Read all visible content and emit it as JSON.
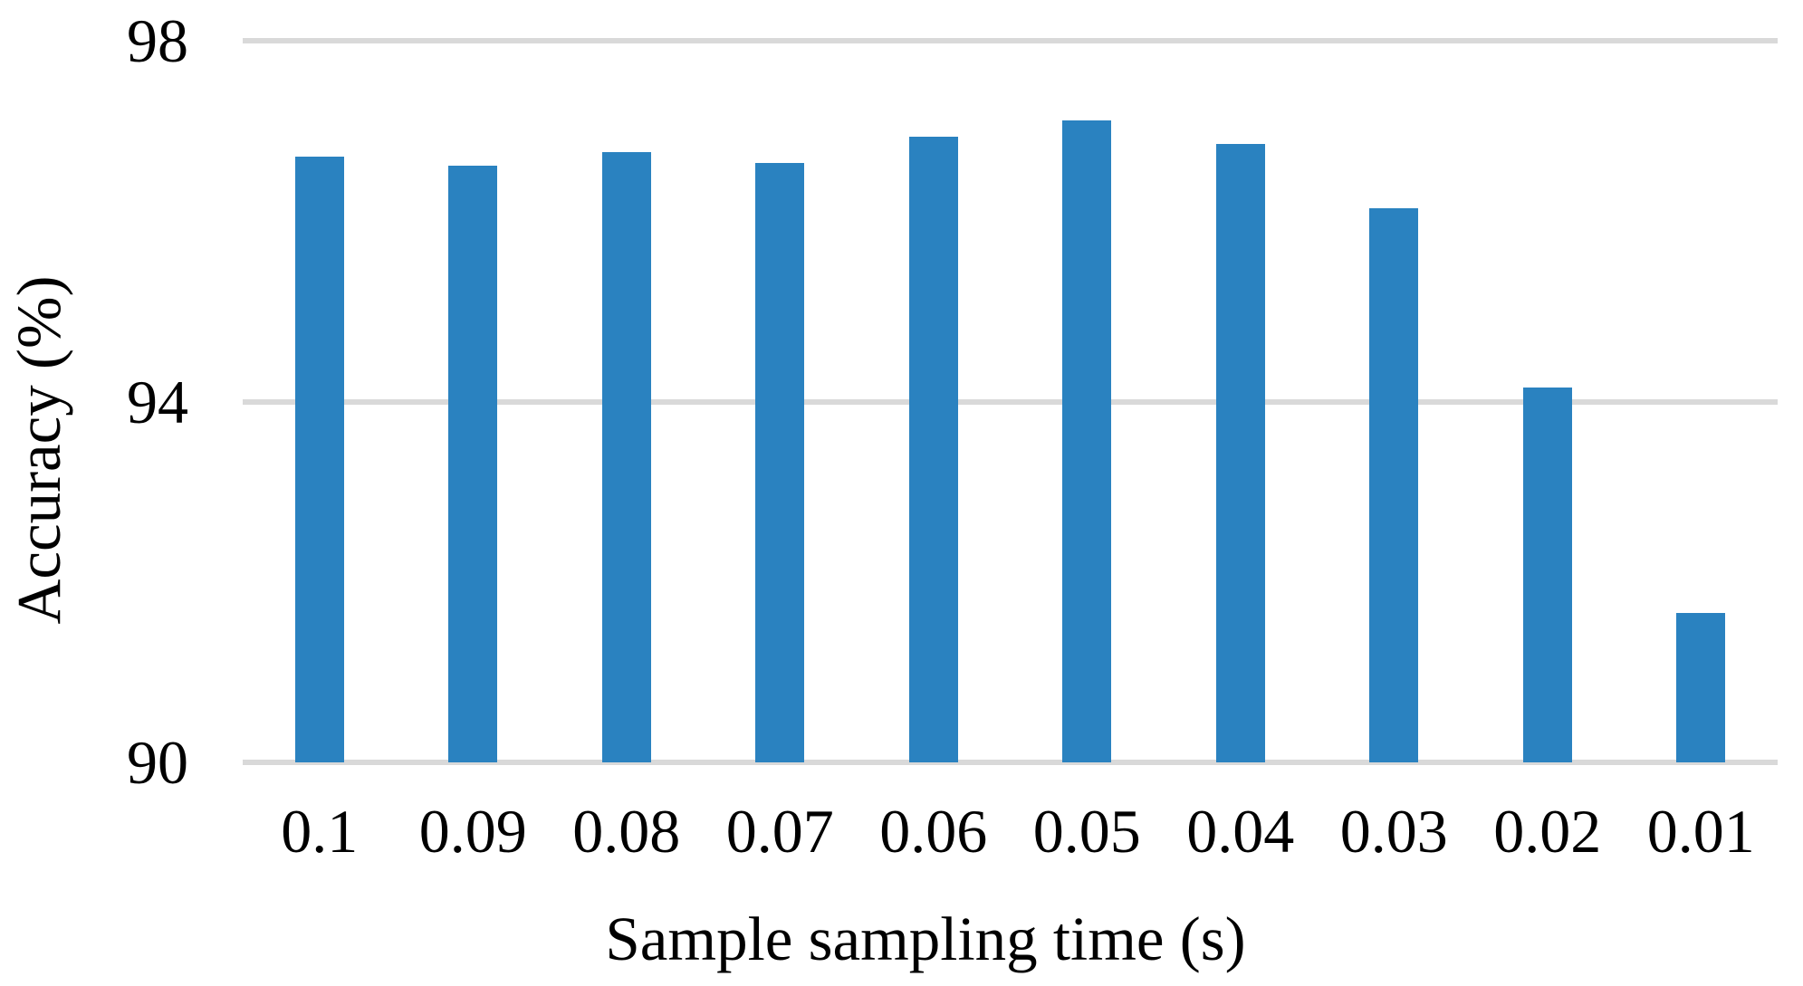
{
  "chart_data": {
    "type": "bar",
    "title": "",
    "categories": [
      "0.1",
      "0.09",
      "0.08",
      "0.07",
      "0.06",
      "0.05",
      "0.04",
      "0.03",
      "0.02",
      "0.01"
    ],
    "values": [
      96.72,
      96.61,
      96.77,
      96.64,
      96.94,
      97.12,
      96.86,
      96.14,
      94.16,
      91.66
    ],
    "xlabel": "Sample sampling time (s)",
    "ylabel": "Accuracy (%)",
    "ylim": [
      90,
      98
    ],
    "yticks": [
      98,
      94,
      90
    ],
    "grid": true,
    "legend": false,
    "bar_color": "#2A82C0",
    "gridline_color": "#D9D9D9",
    "text_color": "#000000"
  }
}
